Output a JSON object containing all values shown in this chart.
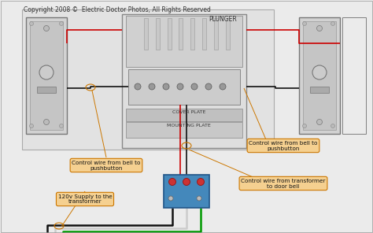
{
  "bg_color": "#ebebeb",
  "title_text": "Copyright 2008 ©  Electric Doctor Photos, All Rights Reserved",
  "title_color": "#333333",
  "title_fontsize": 5.5,
  "label_plunger": "PLUNGER",
  "label_mounting_plate": "MOUNTING PLATE",
  "label_cover_plate": "COVER PLATE",
  "annotation_1": "Control wire from bell to\npushbutton",
  "annotation_2": "Control wire from bell to\npushbutton",
  "annotation_3": "Control wire from transformer\nto door bell",
  "annotation_4": "120v Supply to the\ntransformer",
  "orange_box_color": "#cc7700",
  "orange_box_bg": "#f5d090",
  "annotation_fontsize": 5.2,
  "wire_red": "#cc0000",
  "wire_black": "#111111",
  "wire_white": "#cccccc",
  "wire_green": "#009900"
}
